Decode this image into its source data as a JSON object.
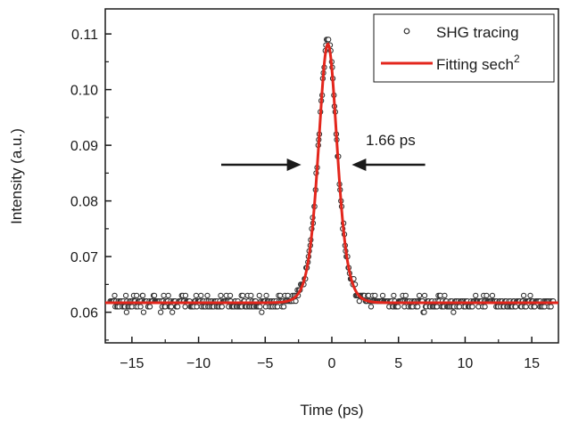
{
  "chart_data": {
    "type": "scatter",
    "title": "",
    "xlabel": "Time (ps)",
    "ylabel": "Intensity (a.u.)",
    "xlim": [
      -17,
      17
    ],
    "ylim": [
      0.0545,
      0.1145
    ],
    "xticks": [
      -15,
      -10,
      -5,
      0,
      5,
      10,
      15
    ],
    "xtick_labels": [
      "−15",
      "−10",
      "−5",
      "0",
      "5",
      "10",
      "15"
    ],
    "yticks": [
      0.06,
      0.07,
      0.08,
      0.09,
      0.1,
      0.11
    ],
    "ytick_labels": [
      "0.06",
      "0.07",
      "0.08",
      "0.09",
      "0.10",
      "0.11"
    ],
    "grid": false,
    "legend_position": "top-right",
    "annotation": {
      "text": "1.66 ps",
      "left_arrow_x": [
        -8.3,
        -2.3
      ],
      "right_arrow_x": [
        7.0,
        1.5
      ],
      "y": 0.0865
    },
    "series": [
      {
        "name": "SHG tracing",
        "kind": "scatter",
        "color": "#333333",
        "marker": "open-circle",
        "baseline": 0.0617,
        "peak": 0.1088,
        "center": -0.3,
        "fwhm": 1.66,
        "x_range": [
          -16.6,
          16.6
        ],
        "point_count": 560
      },
      {
        "name": "Fitting sech",
        "legend_suffix": "2",
        "kind": "line",
        "color": "#e3261c",
        "function": "sech^2",
        "baseline": 0.0617,
        "peak": 0.1082,
        "center": -0.3,
        "fwhm": 1.66
      }
    ]
  }
}
